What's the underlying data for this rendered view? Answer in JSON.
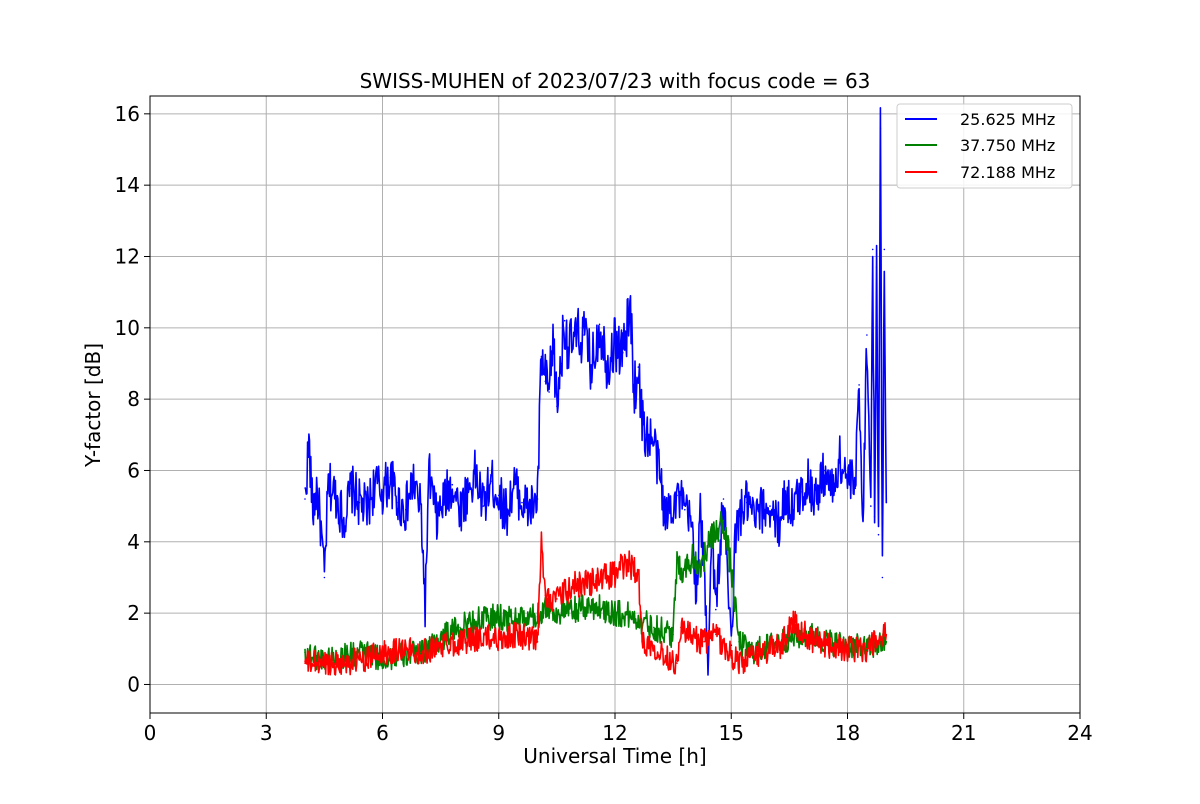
{
  "chart_data": {
    "type": "line",
    "title": "SWISS-MUHEN of 2023/07/23 with focus code = 63",
    "xlabel": "Universal Time [h]",
    "ylabel": "Y-factor [dB]",
    "xlim": [
      0,
      24
    ],
    "ylim": [
      -0.8,
      16.5
    ],
    "xticks": [
      0,
      3,
      6,
      9,
      12,
      15,
      18,
      21,
      24
    ],
    "yticks": [
      0,
      2,
      4,
      6,
      8,
      10,
      12,
      14,
      16
    ],
    "grid": true,
    "legend_position": "top-right",
    "series": [
      {
        "name": "25.625 MHz",
        "color": "#0000ff",
        "x": [
          4.0,
          4.1,
          4.2,
          4.3,
          4.4,
          4.5,
          4.6,
          4.8,
          5.0,
          5.2,
          5.4,
          5.6,
          5.8,
          6.0,
          6.2,
          6.4,
          6.6,
          6.8,
          7.0,
          7.1,
          7.2,
          7.4,
          7.6,
          7.8,
          8.0,
          8.2,
          8.4,
          8.6,
          8.8,
          9.0,
          9.2,
          9.4,
          9.6,
          9.8,
          10.0,
          10.1,
          10.2,
          10.3,
          10.4,
          10.5,
          10.6,
          10.7,
          10.8,
          11.0,
          11.2,
          11.4,
          11.6,
          11.8,
          12.0,
          12.2,
          12.4,
          12.5,
          12.6,
          12.7,
          12.8,
          13.0,
          13.2,
          13.3,
          13.4,
          13.6,
          13.8,
          14.0,
          14.1,
          14.2,
          14.3,
          14.4,
          14.5,
          14.6,
          14.8,
          15.0,
          15.1,
          15.2,
          15.4,
          15.6,
          15.8,
          16.0,
          16.2,
          16.4,
          16.6,
          16.8,
          17.0,
          17.2,
          17.4,
          17.6,
          17.8,
          18.0,
          18.2,
          18.3,
          18.4,
          18.5,
          18.6,
          18.65,
          18.7,
          18.75,
          18.8,
          18.85,
          18.9,
          18.95,
          19.0
        ],
        "values": [
          5.2,
          6.8,
          4.8,
          5.5,
          4.5,
          3.0,
          5.6,
          5.3,
          4.6,
          5.5,
          5.1,
          4.9,
          5.6,
          5.4,
          5.8,
          5.1,
          4.9,
          5.7,
          4.8,
          2.2,
          5.9,
          4.6,
          5.2,
          5.6,
          4.9,
          5.4,
          5.9,
          5.0,
          5.7,
          5.3,
          4.8,
          5.6,
          5.1,
          4.9,
          5.2,
          9.2,
          8.5,
          8.2,
          9.7,
          7.8,
          9.0,
          10.2,
          9.4,
          9.7,
          9.8,
          8.9,
          10.1,
          9.0,
          9.6,
          9.3,
          10.5,
          8.2,
          8.9,
          7.4,
          7.0,
          6.8,
          5.6,
          4.6,
          5.0,
          5.3,
          4.9,
          4.4,
          2.5,
          4.8,
          3.2,
          0.6,
          4.5,
          2.1,
          5.2,
          1.1,
          4.0,
          4.7,
          5.1,
          4.6,
          4.9,
          5.0,
          4.4,
          5.3,
          4.9,
          5.4,
          5.7,
          5.2,
          6.0,
          5.4,
          6.3,
          5.8,
          5.5,
          8.4,
          4.6,
          9.8,
          5.0,
          12.2,
          4.7,
          11.7,
          4.2,
          15.6,
          3.0,
          12.2,
          5.1
        ]
      },
      {
        "name": "37.750 MHz",
        "color": "#008000",
        "x": [
          4.0,
          4.5,
          5.0,
          5.5,
          6.0,
          6.5,
          7.0,
          7.5,
          8.0,
          8.5,
          9.0,
          9.5,
          10.0,
          10.2,
          10.5,
          11.0,
          11.5,
          12.0,
          12.5,
          13.0,
          13.5,
          13.6,
          13.8,
          14.0,
          14.2,
          14.5,
          14.8,
          15.0,
          15.2,
          15.5,
          16.0,
          16.5,
          17.0,
          17.5,
          18.0,
          18.5,
          19.0
        ],
        "values": [
          0.9,
          0.7,
          0.8,
          0.9,
          0.7,
          0.8,
          0.9,
          1.3,
          1.6,
          1.8,
          1.9,
          1.8,
          1.9,
          2.2,
          2.0,
          2.1,
          2.2,
          2.0,
          1.9,
          1.6,
          1.4,
          3.4,
          3.2,
          3.6,
          3.3,
          4.1,
          4.6,
          3.2,
          1.2,
          0.9,
          1.1,
          1.3,
          1.4,
          1.2,
          1.1,
          1.0,
          1.2
        ]
      },
      {
        "name": "72.188 MHz",
        "color": "#ff0000",
        "x": [
          4.0,
          4.5,
          5.0,
          5.5,
          6.0,
          6.5,
          7.0,
          7.5,
          8.0,
          8.5,
          9.0,
          9.5,
          10.0,
          10.1,
          10.2,
          10.5,
          11.0,
          11.5,
          12.0,
          12.3,
          12.6,
          12.7,
          13.0,
          13.3,
          13.6,
          13.7,
          14.0,
          14.3,
          14.6,
          15.0,
          15.3,
          15.6,
          16.0,
          16.3,
          16.6,
          17.0,
          17.5,
          18.0,
          18.5,
          19.0
        ],
        "values": [
          0.6,
          0.6,
          0.6,
          0.7,
          0.9,
          1.0,
          0.9,
          1.1,
          1.2,
          1.3,
          1.3,
          1.4,
          1.2,
          3.9,
          2.5,
          2.4,
          2.8,
          2.9,
          3.1,
          3.4,
          3.2,
          1.2,
          1.1,
          0.8,
          0.6,
          1.6,
          1.3,
          1.2,
          1.4,
          0.8,
          0.6,
          0.8,
          1.0,
          1.1,
          1.8,
          1.3,
          1.1,
          1.0,
          1.0,
          1.4
        ]
      }
    ]
  }
}
